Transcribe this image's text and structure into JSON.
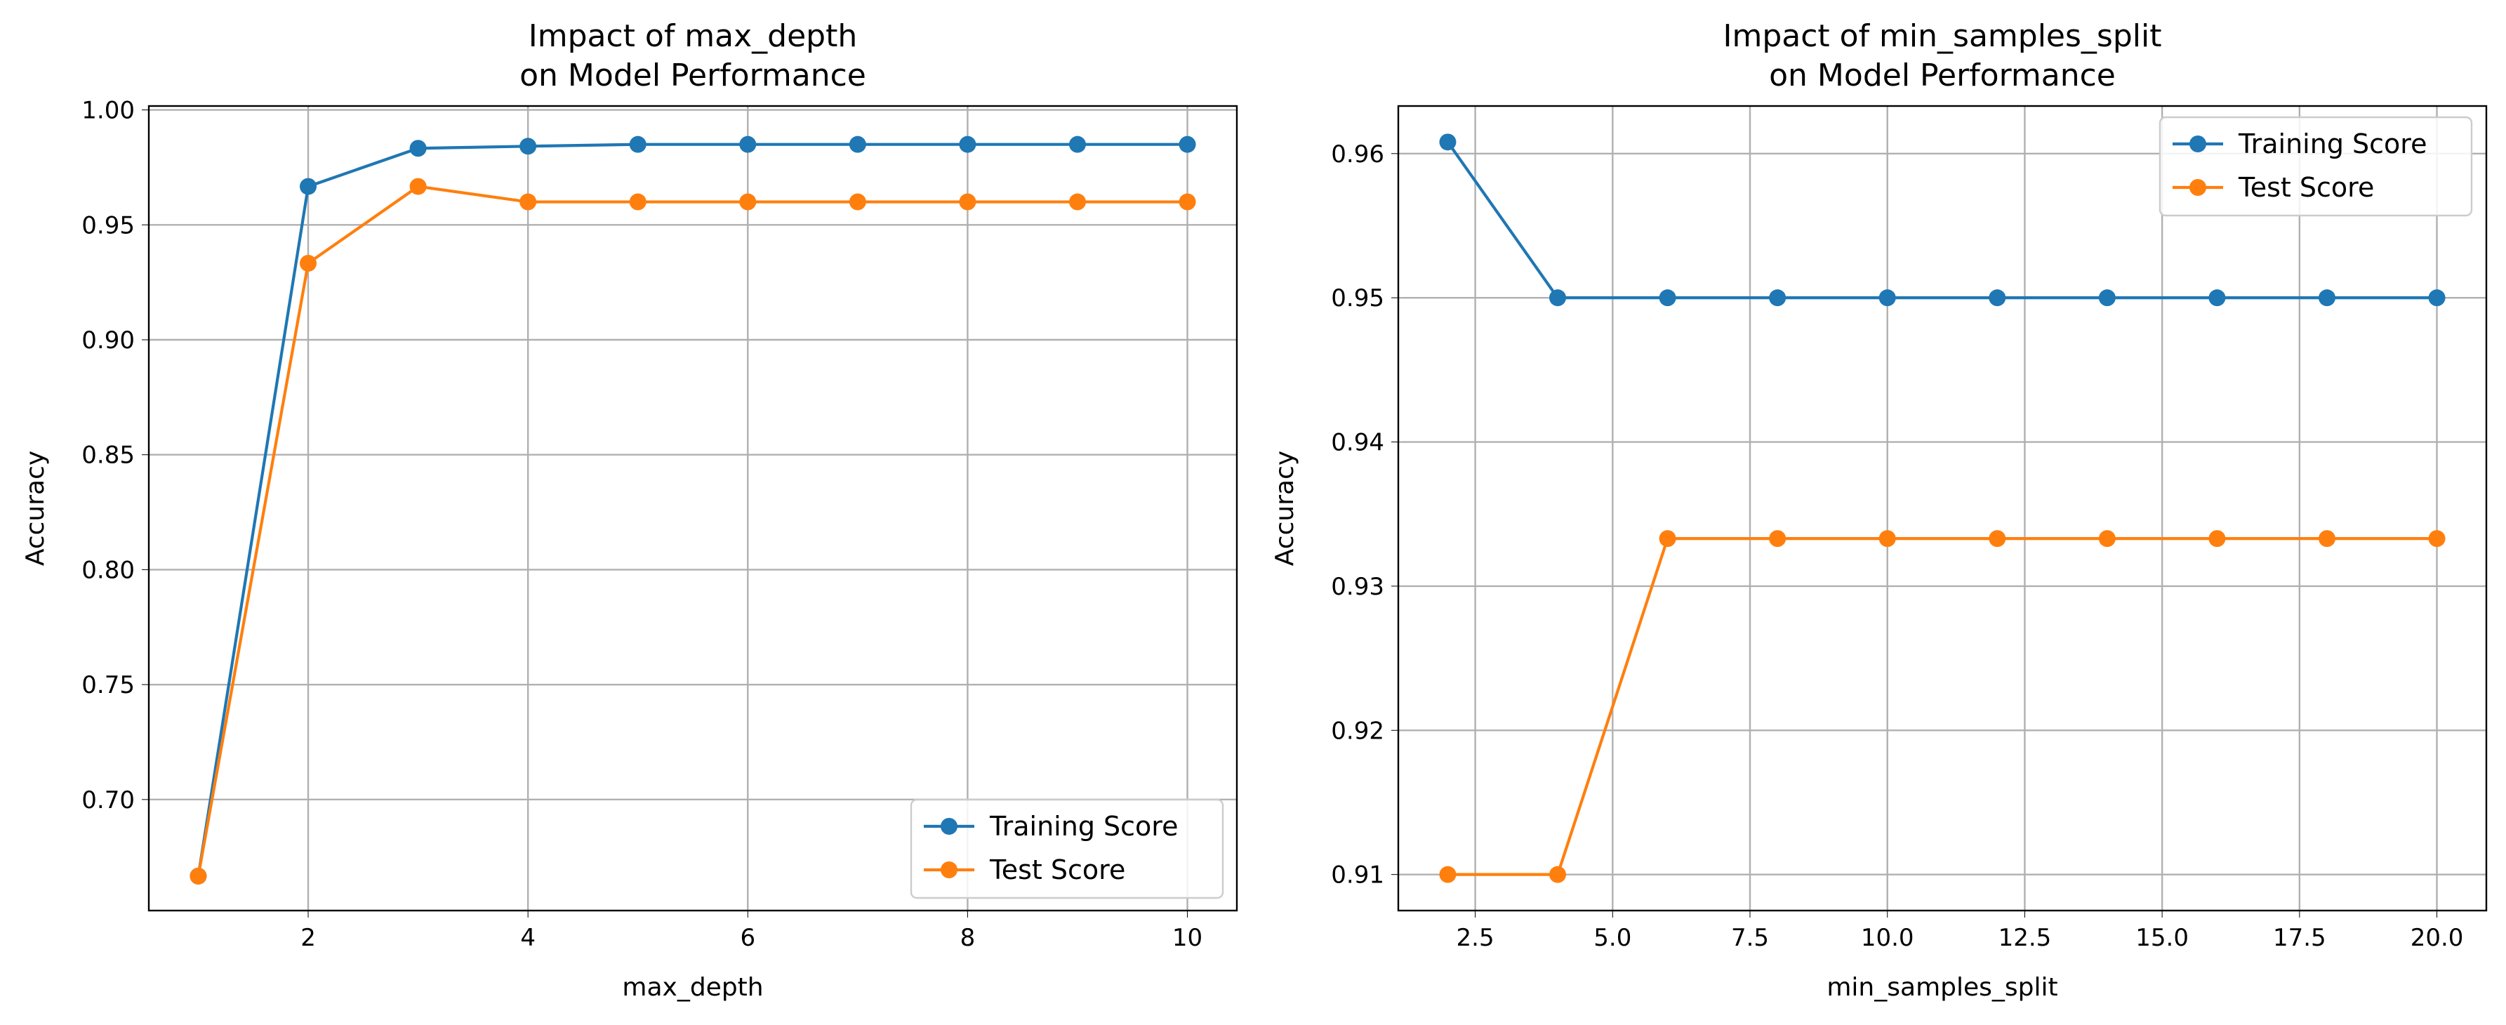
{
  "chart_data": [
    {
      "type": "line",
      "title_lines": [
        "Impact of max_depth",
        "on Model Performance"
      ],
      "xlabel": "max_depth",
      "ylabel": "Accuracy",
      "xlim": [
        0.55,
        10.45
      ],
      "ylim": [
        0.6517,
        1.0017
      ],
      "xticks": [
        2,
        4,
        6,
        8,
        10
      ],
      "xtick_labels": [
        "2",
        "4",
        "6",
        "8",
        "10"
      ],
      "yticks": [
        0.7,
        0.75,
        0.8,
        0.85,
        0.9,
        0.95,
        1.0
      ],
      "ytick_labels": [
        "0.70",
        "0.75",
        "0.80",
        "0.85",
        "0.90",
        "0.95",
        "1.00"
      ],
      "grid": true,
      "legend_position": "lower right",
      "x": [
        1,
        2,
        3,
        4,
        5,
        6,
        7,
        8,
        9,
        10
      ],
      "series": [
        {
          "name": "Training Score",
          "color": "#1f77b4",
          "values": [
            0.6667,
            0.9667,
            0.9833,
            0.9842,
            0.985,
            0.985,
            0.985,
            0.985,
            0.985,
            0.985
          ]
        },
        {
          "name": "Test Score",
          "color": "#ff7f0e",
          "values": [
            0.6667,
            0.9333,
            0.9667,
            0.96,
            0.96,
            0.96,
            0.96,
            0.96,
            0.96,
            0.96
          ]
        }
      ]
    },
    {
      "type": "line",
      "title_lines": [
        "Impact of min_samples_split",
        "on Model Performance"
      ],
      "xlabel": "min_samples_split",
      "ylabel": "Accuracy",
      "xlim": [
        1.1,
        20.9
      ],
      "ylim": [
        0.9075,
        0.9633
      ],
      "xticks": [
        2.5,
        5.0,
        7.5,
        10.0,
        12.5,
        15.0,
        17.5,
        20.0
      ],
      "xtick_labels": [
        "2.5",
        "5.0",
        "7.5",
        "10.0",
        "12.5",
        "15.0",
        "17.5",
        "20.0"
      ],
      "yticks": [
        0.91,
        0.92,
        0.93,
        0.94,
        0.95,
        0.96
      ],
      "ytick_labels": [
        "0.91",
        "0.92",
        "0.93",
        "0.94",
        "0.95",
        "0.96"
      ],
      "grid": true,
      "legend_position": "upper right",
      "x": [
        2,
        4,
        6,
        8,
        10,
        12,
        14,
        16,
        18,
        20
      ],
      "series": [
        {
          "name": "Training Score",
          "color": "#1f77b4",
          "values": [
            0.9608,
            0.95,
            0.95,
            0.95,
            0.95,
            0.95,
            0.95,
            0.95,
            0.95,
            0.95
          ]
        },
        {
          "name": "Test Score",
          "color": "#ff7f0e",
          "values": [
            0.91,
            0.91,
            0.9333,
            0.9333,
            0.9333,
            0.9333,
            0.9333,
            0.9333,
            0.9333,
            0.9333
          ]
        }
      ]
    }
  ]
}
